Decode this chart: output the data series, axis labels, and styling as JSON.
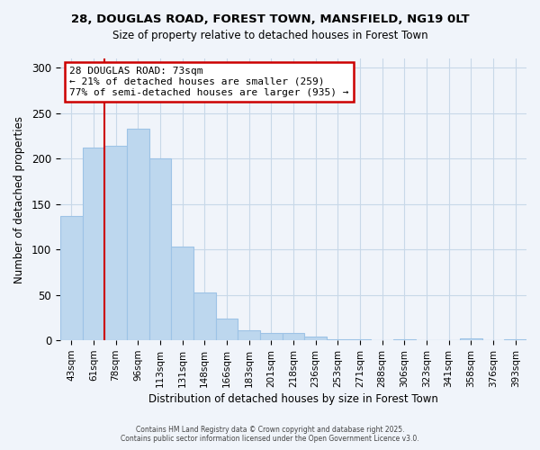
{
  "title": "28, DOUGLAS ROAD, FOREST TOWN, MANSFIELD, NG19 0LT",
  "subtitle": "Size of property relative to detached houses in Forest Town",
  "xlabel": "Distribution of detached houses by size in Forest Town",
  "ylabel": "Number of detached properties",
  "bar_labels": [
    "43sqm",
    "61sqm",
    "78sqm",
    "96sqm",
    "113sqm",
    "131sqm",
    "148sqm",
    "166sqm",
    "183sqm",
    "201sqm",
    "218sqm",
    "236sqm",
    "253sqm",
    "271sqm",
    "288sqm",
    "306sqm",
    "323sqm",
    "341sqm",
    "358sqm",
    "376sqm",
    "393sqm"
  ],
  "bar_values": [
    137,
    212,
    214,
    233,
    200,
    103,
    53,
    24,
    11,
    8,
    8,
    4,
    1,
    1,
    0,
    1,
    0,
    0,
    2,
    0,
    1
  ],
  "bar_color": "#BDD7EE",
  "bar_edge_color": "#9DC3E6",
  "vline_x_idx": 1,
  "vline_color": "#CC0000",
  "annotation_line1": "28 DOUGLAS ROAD: 73sqm",
  "annotation_line2": "← 21% of detached houses are smaller (259)",
  "annotation_line3": "77% of semi-detached houses are larger (935) →",
  "annotation_box_color": "#CC0000",
  "ylim": [
    0,
    310
  ],
  "yticks": [
    0,
    50,
    100,
    150,
    200,
    250,
    300
  ],
  "footer1": "Contains HM Land Registry data © Crown copyright and database right 2025.",
  "footer2": "Contains public sector information licensed under the Open Government Licence v3.0.",
  "bg_color": "#F0F4FA",
  "grid_color": "#C8D8E8",
  "title_fontsize": 9.5,
  "subtitle_fontsize": 8.5
}
